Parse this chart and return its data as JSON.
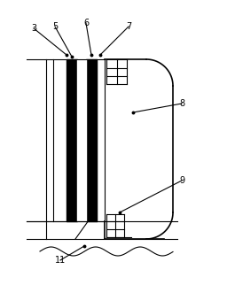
{
  "bg_color": "#ffffff",
  "line_color": "#000000",
  "fig_width": 2.56,
  "fig_height": 3.22,
  "dpi": 100,
  "thin_lw": 0.8,
  "medium_lw": 1.2,
  "thick_lw": 4.0
}
